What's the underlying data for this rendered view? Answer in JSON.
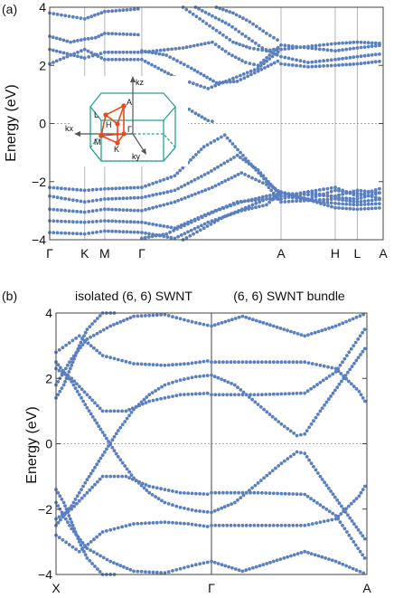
{
  "chart_data": [
    {
      "type": "scatter",
      "panel_label": "(a)",
      "ylabel": "Energy (eV)",
      "ylim": [
        -4,
        4
      ],
      "yticks": [
        "4",
        "2",
        "0",
        "−2",
        "−4"
      ],
      "ytick_values": [
        4,
        2,
        0,
        -2,
        -4
      ],
      "kpath": [
        "Γ",
        "K",
        "M",
        "Γ",
        "A",
        "H",
        "L",
        "A"
      ],
      "kpath_positions": [
        0,
        0.84,
        1.32,
        2.21,
        5.55,
        6.85,
        7.38,
        8.0
      ],
      "vertical_lines": [
        0.84,
        1.32,
        2.21,
        5.55,
        6.85,
        7.38
      ],
      "fermi_level": 0,
      "marker_color": "#5a7fbf",
      "inset": {
        "kz": "kz",
        "kx": "kx",
        "ky": "ky",
        "points": [
          "A",
          "L",
          "H",
          "Γ",
          "M",
          "K"
        ],
        "hex_color": "#2aa198",
        "path_color": "#e8491d"
      },
      "series": [
        {
          "x": [
            0.0,
            0.84,
            1.32,
            2.21,
            3.2,
            3.9,
            4.3,
            4.7,
            5.0,
            5.55,
            6.85,
            7.38,
            8.0
          ],
          "y": [
            2.55,
            2.25,
            2.45,
            2.45,
            2.6,
            2.8,
            2.4,
            2.1,
            2.0,
            2.7,
            2.5,
            2.6,
            2.7
          ]
        },
        {
          "x": [
            0.0,
            0.84,
            1.32,
            2.21,
            3.0,
            3.8,
            4.4,
            5.0,
            5.55,
            6.85,
            7.38,
            8.0
          ],
          "y": [
            2.05,
            2.55,
            2.2,
            2.2,
            1.6,
            1.2,
            1.55,
            1.9,
            2.55,
            2.75,
            2.8,
            2.75
          ]
        },
        {
          "x": [
            2.21,
            2.6,
            3.1,
            3.5,
            3.8,
            4.0
          ],
          "y": [
            1.2,
            1.05,
            0.7,
            0.35,
            0.1,
            0.05
          ]
        },
        {
          "x": [
            2.21,
            2.8,
            3.4,
            4.0,
            4.5,
            5.0,
            5.55
          ],
          "y": [
            2.5,
            2.35,
            1.9,
            1.4,
            1.45,
            1.8,
            2.2
          ]
        },
        {
          "x": [
            0.0,
            0.84,
            1.32,
            2.21
          ],
          "y": [
            3.8,
            3.6,
            3.85,
            3.95
          ]
        },
        {
          "x": [
            0.0,
            0.5,
            0.84,
            1.1,
            1.32,
            2.21
          ],
          "y": [
            3.0,
            2.8,
            2.9,
            2.95,
            3.1,
            3.05
          ]
        },
        {
          "x": [
            3.2,
            3.6,
            4.0,
            4.4,
            4.8,
            5.2,
            5.55
          ],
          "y": [
            4.0,
            3.6,
            3.2,
            2.8,
            2.6,
            2.5,
            2.6
          ]
        },
        {
          "x": [
            3.5,
            3.9,
            4.3,
            4.7,
            5.1,
            5.55
          ],
          "y": [
            4.0,
            3.7,
            3.4,
            3.0,
            2.6,
            2.3
          ]
        },
        {
          "x": [
            4.0,
            4.4,
            4.8,
            5.2,
            5.55
          ],
          "y": [
            4.0,
            3.8,
            3.5,
            3.1,
            2.8
          ]
        },
        {
          "x": [
            5.55,
            6.2,
            6.85,
            7.38,
            8.0
          ],
          "y": [
            2.3,
            2.1,
            2.2,
            2.3,
            2.4
          ]
        },
        {
          "x": [
            5.55,
            6.2,
            6.85,
            7.38,
            8.0
          ],
          "y": [
            2.05,
            1.95,
            2.0,
            2.05,
            2.15
          ]
        },
        {
          "x": [
            0.0,
            0.84,
            1.32,
            2.21,
            3.0,
            3.7,
            4.2,
            4.7,
            5.2,
            5.55,
            6.85,
            7.38,
            8.0
          ],
          "y": [
            -2.2,
            -2.3,
            -2.25,
            -2.2,
            -1.8,
            -0.8,
            -0.4,
            -1.2,
            -2.0,
            -2.4,
            -2.5,
            -2.3,
            -2.4
          ]
        },
        {
          "x": [
            0.0,
            0.84,
            1.32,
            2.21,
            3.0,
            3.8,
            4.5,
            5.0,
            5.55,
            6.85,
            7.38,
            8.0
          ],
          "y": [
            -2.5,
            -2.7,
            -2.6,
            -2.55,
            -2.3,
            -1.7,
            -1.1,
            -1.6,
            -2.5,
            -2.2,
            -2.5,
            -2.2
          ]
        },
        {
          "x": [
            0.0,
            0.84,
            1.32,
            2.21,
            3.0,
            3.9,
            4.6,
            5.2,
            5.55,
            6.85,
            7.38,
            8.0
          ],
          "y": [
            -2.95,
            -3.05,
            -2.95,
            -3.0,
            -2.7,
            -2.2,
            -1.7,
            -2.1,
            -2.7,
            -2.6,
            -2.7,
            -2.6
          ]
        },
        {
          "x": [
            0.0,
            0.84,
            1.32,
            2.21,
            3.0,
            3.8,
            4.5,
            5.2,
            5.55,
            6.85,
            7.38,
            8.0
          ],
          "y": [
            -3.35,
            -3.4,
            -3.35,
            -3.4,
            -3.6,
            -3.1,
            -2.7,
            -2.6,
            -2.5,
            -2.75,
            -2.8,
            -2.75
          ]
        },
        {
          "x": [
            0.0,
            0.84,
            1.32,
            2.21,
            3.0,
            3.8,
            4.6,
            5.2,
            5.55,
            6.85,
            7.38,
            8.0
          ],
          "y": [
            -3.75,
            -3.8,
            -3.7,
            -3.75,
            -3.95,
            -3.4,
            -3.0,
            -2.8,
            -2.35,
            -2.9,
            -2.95,
            -2.9
          ]
        },
        {
          "x": [
            2.21,
            2.8,
            3.4,
            4.0,
            4.6,
            5.2,
            5.55
          ],
          "y": [
            -3.95,
            -3.8,
            -3.4,
            -3.0,
            -2.7,
            -2.5,
            -2.4
          ]
        },
        {
          "x": [
            3.2,
            3.7,
            4.2,
            4.7,
            5.2,
            5.55
          ],
          "y": [
            -4.0,
            -3.6,
            -3.2,
            -2.9,
            -2.6,
            -2.6
          ]
        },
        {
          "x": [
            5.55,
            6.2,
            6.85,
            7.38,
            8.0
          ],
          "y": [
            -2.4,
            -2.6,
            -2.3,
            -2.4,
            -2.6
          ]
        },
        {
          "x": [
            5.55,
            6.2,
            6.85,
            7.38,
            8.0
          ],
          "y": [
            -2.6,
            -2.35,
            -2.55,
            -2.6,
            -2.35
          ]
        }
      ]
    },
    {
      "type": "scatter",
      "panel_label": "(b)",
      "ylabel": "Energy (eV)",
      "ylim": [
        -4,
        4
      ],
      "yticks": [
        "4",
        "2",
        "0",
        "−2",
        "−4"
      ],
      "ytick_values": [
        4,
        2,
        0,
        -2,
        -4
      ],
      "kpath": [
        "X",
        "Γ",
        "A"
      ],
      "kpath_positions": [
        0,
        1,
        2
      ],
      "vertical_lines": [
        1
      ],
      "fermi_level": 0,
      "subtitles": [
        "isolated (6, 6) SWNT",
        "(6, 6) SWNT bundle"
      ],
      "marker_color": "#5a7fbf",
      "series": [
        {
          "x": [
            0.0,
            0.1,
            0.2,
            0.3,
            0.4,
            0.5,
            0.6,
            0.7,
            0.8,
            0.9,
            1.0
          ],
          "y": [
            -2.5,
            -1.9,
            -1.1,
            -0.35,
            0.4,
            1.05,
            1.5,
            1.8,
            1.95,
            2.05,
            2.1
          ]
        },
        {
          "x": [
            0.0,
            0.1,
            0.2,
            0.3,
            0.4,
            0.5,
            0.6,
            0.7,
            0.8,
            0.9,
            1.0
          ],
          "y": [
            2.5,
            1.9,
            1.1,
            0.35,
            -0.4,
            -1.05,
            -1.5,
            -1.8,
            -1.95,
            -2.05,
            -2.1
          ]
        },
        {
          "x": [
            0.0,
            0.1,
            0.2,
            0.3,
            0.45,
            0.6,
            0.8,
            1.0
          ],
          "y": [
            2.3,
            2.0,
            1.5,
            1.0,
            1.0,
            1.3,
            1.5,
            1.55
          ]
        },
        {
          "x": [
            0.0,
            0.1,
            0.2,
            0.3,
            0.45,
            0.6,
            0.8,
            1.0
          ],
          "y": [
            -2.3,
            -2.0,
            -1.5,
            -1.0,
            -1.0,
            -1.3,
            -1.5,
            -1.55
          ]
        },
        {
          "x": [
            0.0,
            0.05,
            0.1,
            0.15,
            0.2,
            0.3,
            0.4
          ],
          "y": [
            1.4,
            1.8,
            2.4,
            3.0,
            3.5,
            4.0,
            4.0
          ]
        },
        {
          "x": [
            0.0,
            0.05,
            0.1,
            0.15,
            0.2,
            0.3,
            0.4
          ],
          "y": [
            -1.4,
            -1.8,
            -2.4,
            -3.0,
            -3.5,
            -4.0,
            -4.0
          ]
        },
        {
          "x": [
            0.0,
            0.1,
            0.2,
            0.35,
            0.5,
            0.7,
            0.9,
            1.0
          ],
          "y": [
            1.8,
            2.6,
            3.2,
            3.6,
            3.9,
            3.95,
            3.7,
            3.6
          ]
        },
        {
          "x": [
            0.0,
            0.1,
            0.2,
            0.35,
            0.5,
            0.7,
            0.9,
            1.0
          ],
          "y": [
            -1.8,
            -2.6,
            -3.2,
            -3.6,
            -3.9,
            -3.95,
            -3.7,
            -3.6
          ]
        },
        {
          "x": [
            0.0,
            0.15,
            0.3,
            0.5,
            0.7,
            0.85,
            1.0
          ],
          "y": [
            2.8,
            3.3,
            2.7,
            2.45,
            2.4,
            2.45,
            2.55
          ]
        },
        {
          "x": [
            0.0,
            0.15,
            0.3,
            0.5,
            0.7,
            0.85,
            1.0
          ],
          "y": [
            -2.8,
            -3.3,
            -2.7,
            -2.45,
            -2.4,
            -2.45,
            -2.55
          ]
        },
        {
          "x": [
            1.0,
            1.15,
            1.3,
            1.45,
            1.55,
            1.6,
            1.7,
            1.85,
            2.0
          ],
          "y": [
            2.1,
            1.8,
            1.2,
            0.6,
            0.25,
            0.3,
            1.0,
            2.0,
            3.0
          ]
        },
        {
          "x": [
            1.0,
            1.15,
            1.3,
            1.45,
            1.55,
            1.6,
            1.7,
            1.85,
            2.0
          ],
          "y": [
            -2.1,
            -1.8,
            -1.2,
            -0.6,
            -0.25,
            -0.3,
            -1.0,
            -2.0,
            -3.0
          ]
        },
        {
          "x": [
            1.0,
            1.3,
            1.6,
            1.8,
            1.9,
            2.0
          ],
          "y": [
            1.5,
            1.5,
            1.55,
            2.2,
            2.9,
            3.6
          ]
        },
        {
          "x": [
            1.0,
            1.3,
            1.6,
            1.8,
            1.9,
            2.0
          ],
          "y": [
            -1.5,
            -1.5,
            -1.55,
            -2.2,
            -2.9,
            -3.6
          ]
        },
        {
          "x": [
            1.0,
            1.3,
            1.6,
            1.8,
            1.95,
            2.0
          ],
          "y": [
            2.5,
            2.5,
            2.5,
            2.3,
            1.6,
            1.2
          ]
        },
        {
          "x": [
            1.0,
            1.3,
            1.6,
            1.8,
            1.95,
            2.0
          ],
          "y": [
            -2.5,
            -2.5,
            -2.5,
            -2.3,
            -1.6,
            -1.2
          ]
        },
        {
          "x": [
            1.0,
            1.2,
            1.4,
            1.6,
            1.8,
            2.0
          ],
          "y": [
            3.6,
            3.9,
            3.6,
            3.3,
            3.6,
            4.0
          ]
        },
        {
          "x": [
            1.0,
            1.2,
            1.4,
            1.6,
            1.8,
            2.0
          ],
          "y": [
            -3.6,
            -3.9,
            -3.6,
            -3.3,
            -3.6,
            -4.0
          ]
        }
      ]
    }
  ]
}
